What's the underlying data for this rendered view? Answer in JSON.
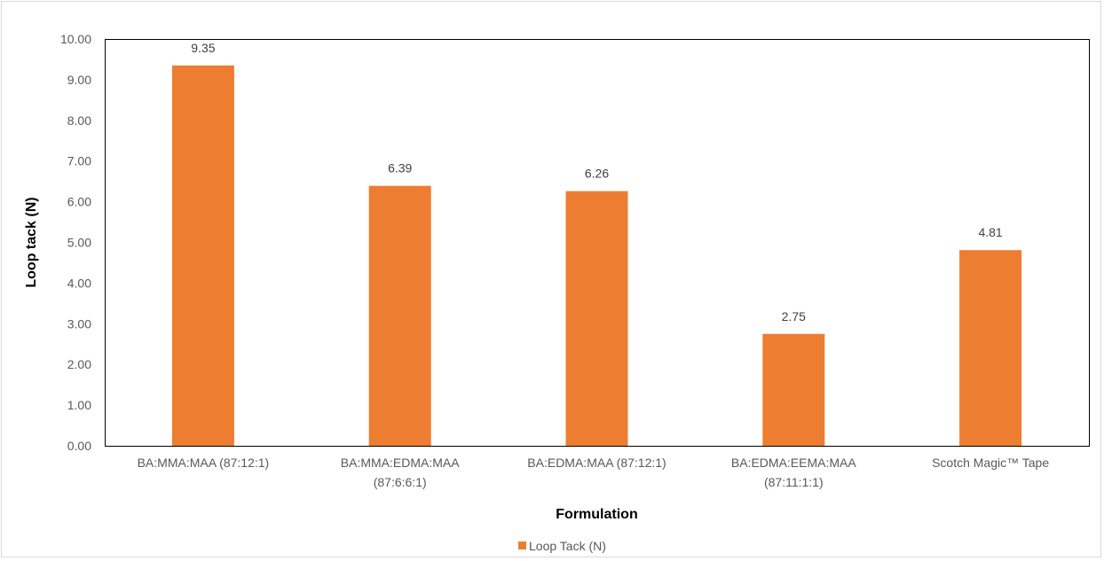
{
  "chart_data": {
    "type": "bar",
    "categories": [
      [
        "BA:MMA:MAA (87:12:1)"
      ],
      [
        "BA:MMA:EDMA:MAA",
        "(87:6:6:1)"
      ],
      [
        "BA:EDMA:MAA (87:12:1)"
      ],
      [
        "BA:EDMA:EEMA:MAA",
        "(87:11:1:1)"
      ],
      [
        "Scotch Magic™ Tape"
      ]
    ],
    "series": [
      {
        "name": "Loop Tack (N)",
        "values": [
          9.35,
          6.39,
          6.26,
          2.75,
          4.81
        ],
        "data_labels": [
          "9.35",
          "6.39",
          "6.26",
          "2.75",
          "4.81"
        ],
        "color": "#ED7D31"
      }
    ],
    "xlabel": "Formulation",
    "ylabel": "Loop tack (N)",
    "ylim": [
      0,
      10
    ],
    "yticks": [
      "0.00",
      "1.00",
      "2.00",
      "3.00",
      "4.00",
      "5.00",
      "6.00",
      "7.00",
      "8.00",
      "9.00",
      "10.00"
    ],
    "grid": false,
    "legend": "bottom"
  }
}
